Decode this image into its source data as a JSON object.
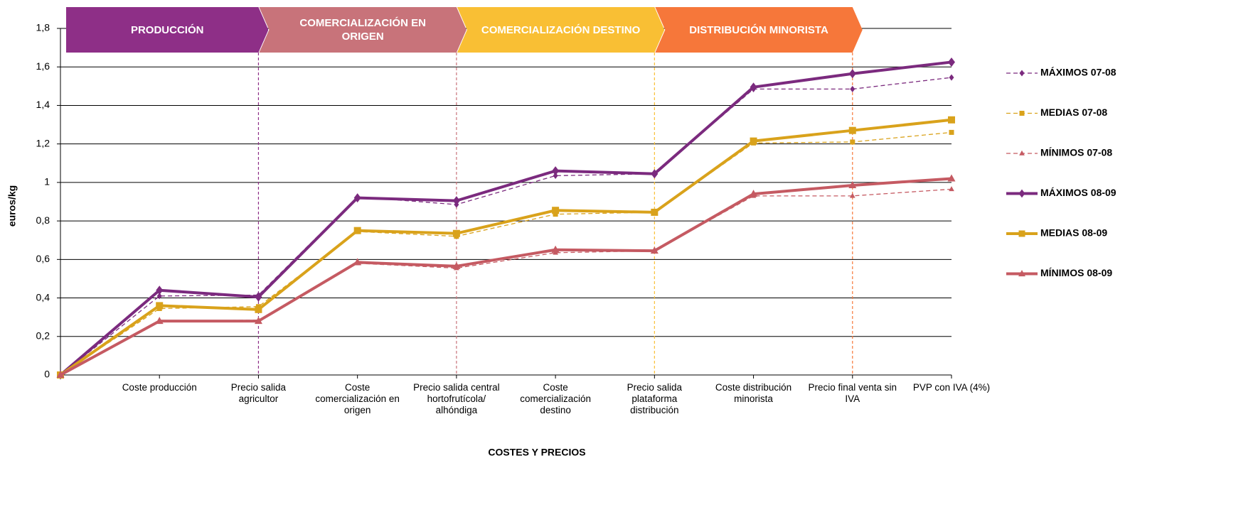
{
  "chart_data": {
    "type": "line",
    "y_label": "euros/kg",
    "x_label": "COSTES Y PRECIOS",
    "stages": [
      {
        "label": "PRODUCCIÓN",
        "color": "#8e2f87"
      },
      {
        "label": "COMERCIALIZACIÓN EN ORIGEN",
        "color": "#c8737a"
      },
      {
        "label": "COMERCIALIZACIÓN DESTINO",
        "color": "#f9bf34"
      },
      {
        "label": "DISTRIBUCIÓN MINORISTA",
        "color": "#f6773a"
      }
    ],
    "categories": [
      null,
      "Coste producción",
      "Precio salida agricultor",
      "Coste comercialización en origen",
      "Precio salida central hortofrutícola/ alhóndiga",
      "Coste comercialización destino",
      "Precio salida plataforma distribución",
      "Coste distribución minorista",
      "Precio final venta sin IVA",
      "PVP con IVA (4%)"
    ],
    "series": [
      {
        "name": "MÁXIMOS 07-08",
        "color": "#7b2a7e",
        "dashed": true,
        "marker": "diamond",
        "values": [
          0,
          0.41,
          0.415,
          0.925,
          0.885,
          1.035,
          1.045,
          1.485,
          1.485,
          1.545
        ]
      },
      {
        "name": "MEDIAS 07-08",
        "color": "#d9a21b",
        "dashed": true,
        "marker": "square",
        "values": [
          0,
          0.345,
          0.355,
          0.745,
          0.72,
          0.835,
          0.845,
          1.205,
          1.21,
          1.26
        ]
      },
      {
        "name": "MÍNIMOS 07-08",
        "color": "#c55a62",
        "dashed": true,
        "marker": "triangle",
        "values": [
          0,
          0.28,
          0.285,
          0.58,
          0.555,
          0.635,
          0.645,
          0.93,
          0.93,
          0.965
        ]
      },
      {
        "name": "MÁXIMOS 08-09",
        "color": "#7b2a7e",
        "dashed": false,
        "marker": "diamond",
        "values": [
          0,
          0.44,
          0.405,
          0.92,
          0.905,
          1.06,
          1.045,
          1.495,
          1.565,
          1.625
        ]
      },
      {
        "name": "MEDIAS 08-09",
        "color": "#d9a21b",
        "dashed": false,
        "marker": "square",
        "values": [
          0,
          0.36,
          0.34,
          0.75,
          0.735,
          0.855,
          0.845,
          1.215,
          1.27,
          1.325
        ]
      },
      {
        "name": "MÍNIMOS 08-09",
        "color": "#c55a62",
        "dashed": false,
        "marker": "triangle",
        "values": [
          0,
          0.28,
          0.28,
          0.585,
          0.565,
          0.65,
          0.645,
          0.94,
          0.985,
          1.02
        ]
      }
    ],
    "ylim": [
      0,
      1.8
    ],
    "yticks": [
      0,
      {
        "value": 0.2,
        "label": "0,2"
      },
      {
        "value": 0.4,
        "label": "0,4"
      },
      {
        "value": 0.6,
        "label": "0,6"
      },
      {
        "value": 0.8,
        "label": "0,8"
      },
      1,
      {
        "value": 1.2,
        "label": "1,2"
      },
      {
        "value": 1.4,
        "label": "1,4"
      },
      {
        "value": 1.6,
        "label": "1,6"
      },
      {
        "value": 1.8,
        "label": "1,8"
      }
    ],
    "grid": true,
    "legend": "right",
    "legend_color": "#a03b93"
  }
}
